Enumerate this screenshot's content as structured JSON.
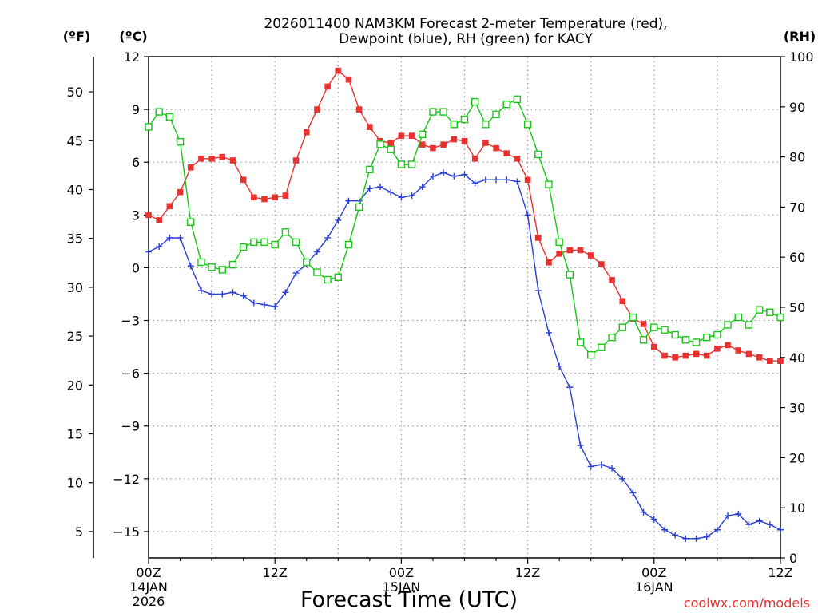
{
  "chart_data": {
    "type": "line",
    "title": "2026011400 NAM3KM Forecast 2-meter Temperature (red),",
    "subtitle": "Dewpoint (blue), RH (green) for KACY",
    "xlabel": "Forecast Time (UTC)",
    "credit": "coolwx.com/models",
    "colors": {
      "temperature": "#e8322f",
      "dewpoint": "#2a3fd6",
      "rh": "#18c618",
      "grid": "#9a9a9a"
    },
    "axes": {
      "left_f": {
        "label": "(ºF)",
        "ticks": [
          5,
          10,
          15,
          20,
          25,
          30,
          35,
          40,
          45,
          50
        ]
      },
      "left_c": {
        "label": "(ºC)",
        "range": [
          -16.5,
          12
        ],
        "ticks": [
          -15,
          -12,
          -9,
          -6,
          -3,
          0,
          3,
          6,
          9,
          12
        ],
        "tick_labels": [
          "−15",
          "−12",
          "−9",
          "−6",
          "−3",
          "0",
          "3",
          "6",
          "9",
          "12"
        ]
      },
      "right_rh": {
        "label": "(RH)",
        "range": [
          0,
          100
        ],
        "ticks": [
          0,
          10,
          20,
          30,
          40,
          50,
          60,
          70,
          80,
          90,
          100
        ]
      },
      "x": {
        "range": [
          0,
          60
        ],
        "unit": "hours",
        "ticks": [
          {
            "hour": 0,
            "label": "00Z",
            "date": "14JAN",
            "year": "2026"
          },
          {
            "hour": 12,
            "label": "12Z",
            "date": "",
            "year": ""
          },
          {
            "hour": 24,
            "label": "00Z",
            "date": "15JAN",
            "year": ""
          },
          {
            "hour": 36,
            "label": "12Z",
            "date": "",
            "year": ""
          },
          {
            "hour": 48,
            "label": "00Z",
            "date": "16JAN",
            "year": ""
          },
          {
            "hour": 60,
            "label": "12Z",
            "date": "",
            "year": ""
          }
        ]
      }
    },
    "grid": true,
    "series": [
      {
        "name": "Temperature",
        "unit": "C",
        "axis": "left_c",
        "marker": "filled-square",
        "x": [
          0,
          1,
          2,
          3,
          4,
          5,
          6,
          7,
          8,
          9,
          10,
          11,
          12,
          13,
          14,
          15,
          16,
          17,
          18,
          19,
          20,
          21,
          22,
          23,
          24,
          25,
          26,
          27,
          28,
          29,
          30,
          31,
          32,
          33,
          34,
          35,
          36,
          37,
          38,
          39,
          40,
          41,
          42,
          43,
          44,
          45,
          46,
          47,
          48,
          49,
          50,
          51,
          52,
          53,
          54,
          55,
          56,
          57,
          58,
          59,
          60
        ],
        "values": [
          3.0,
          2.7,
          3.5,
          4.3,
          5.7,
          6.2,
          6.2,
          6.3,
          6.1,
          5.0,
          4.0,
          3.9,
          4.0,
          4.1,
          6.1,
          7.7,
          9.0,
          10.3,
          11.2,
          10.7,
          9.0,
          8.0,
          7.2,
          7.1,
          7.5,
          7.5,
          7.0,
          6.8,
          7.0,
          7.3,
          7.2,
          6.2,
          7.1,
          6.8,
          6.5,
          6.2,
          5.0,
          1.7,
          0.3,
          0.8,
          1.0,
          1.0,
          0.7,
          0.2,
          -0.7,
          -1.9,
          -2.9,
          -3.2,
          -4.5,
          -5.0,
          -5.1,
          -5.0,
          -4.9,
          -5.0,
          -4.6,
          -4.4,
          -4.7,
          -4.9,
          -5.1,
          -5.3,
          -5.3
        ]
      },
      {
        "name": "Dewpoint",
        "unit": "C",
        "axis": "left_c",
        "marker": "plus",
        "x": [
          0,
          1,
          2,
          3,
          4,
          5,
          6,
          7,
          8,
          9,
          10,
          11,
          12,
          13,
          14,
          15,
          16,
          17,
          18,
          19,
          20,
          21,
          22,
          23,
          24,
          25,
          26,
          27,
          28,
          29,
          30,
          31,
          32,
          33,
          34,
          35,
          36,
          37,
          38,
          39,
          40,
          41,
          42,
          43,
          44,
          45,
          46,
          47,
          48,
          49,
          50,
          51,
          52,
          53,
          54,
          55,
          56,
          57,
          58,
          59,
          60
        ],
        "values": [
          0.9,
          1.2,
          1.7,
          1.7,
          0.1,
          -1.3,
          -1.5,
          -1.5,
          -1.4,
          -1.6,
          -2.0,
          -2.1,
          -2.2,
          -1.4,
          -0.3,
          0.2,
          0.9,
          1.7,
          2.7,
          3.8,
          3.8,
          4.5,
          4.6,
          4.3,
          4.0,
          4.1,
          4.6,
          5.2,
          5.4,
          5.2,
          5.3,
          4.8,
          5.0,
          5.0,
          5.0,
          4.9,
          3.0,
          -1.3,
          -3.7,
          -5.6,
          -6.8,
          -10.1,
          -11.3,
          -11.2,
          -11.4,
          -12.0,
          -12.8,
          -13.9,
          -14.3,
          -14.9,
          -15.2,
          -15.4,
          -15.4,
          -15.3,
          -14.9,
          -14.1,
          -14.0,
          -14.6,
          -14.4,
          -14.6,
          -14.9
        ]
      },
      {
        "name": "RH",
        "unit": "%",
        "axis": "right_rh",
        "marker": "open-square",
        "x": [
          0,
          1,
          2,
          3,
          4,
          5,
          6,
          7,
          8,
          9,
          10,
          11,
          12,
          13,
          14,
          15,
          16,
          17,
          18,
          19,
          20,
          21,
          22,
          23,
          24,
          25,
          26,
          27,
          28,
          29,
          30,
          31,
          32,
          33,
          34,
          35,
          36,
          37,
          38,
          39,
          40,
          41,
          42,
          43,
          44,
          45,
          46,
          47,
          48,
          49,
          50,
          51,
          52,
          53,
          54,
          55,
          56,
          57,
          58,
          59,
          60
        ],
        "values": [
          86,
          89,
          88,
          83,
          67,
          59,
          58,
          57.5,
          58.5,
          62,
          63,
          63,
          62.5,
          65,
          63,
          59,
          57,
          55.5,
          56,
          62.5,
          70,
          77.5,
          82.5,
          81.5,
          78.5,
          78.5,
          84.5,
          89,
          89,
          86.5,
          87.5,
          91,
          86.5,
          88.5,
          90.5,
          91.5,
          86.5,
          80.5,
          74.5,
          63,
          56.5,
          43,
          40.5,
          42,
          44,
          46,
          48,
          43.5,
          46,
          45.5,
          44.5,
          43.5,
          43,
          44,
          44.5,
          46.5,
          48,
          46.5,
          49.5,
          49,
          48
        ]
      }
    ]
  }
}
